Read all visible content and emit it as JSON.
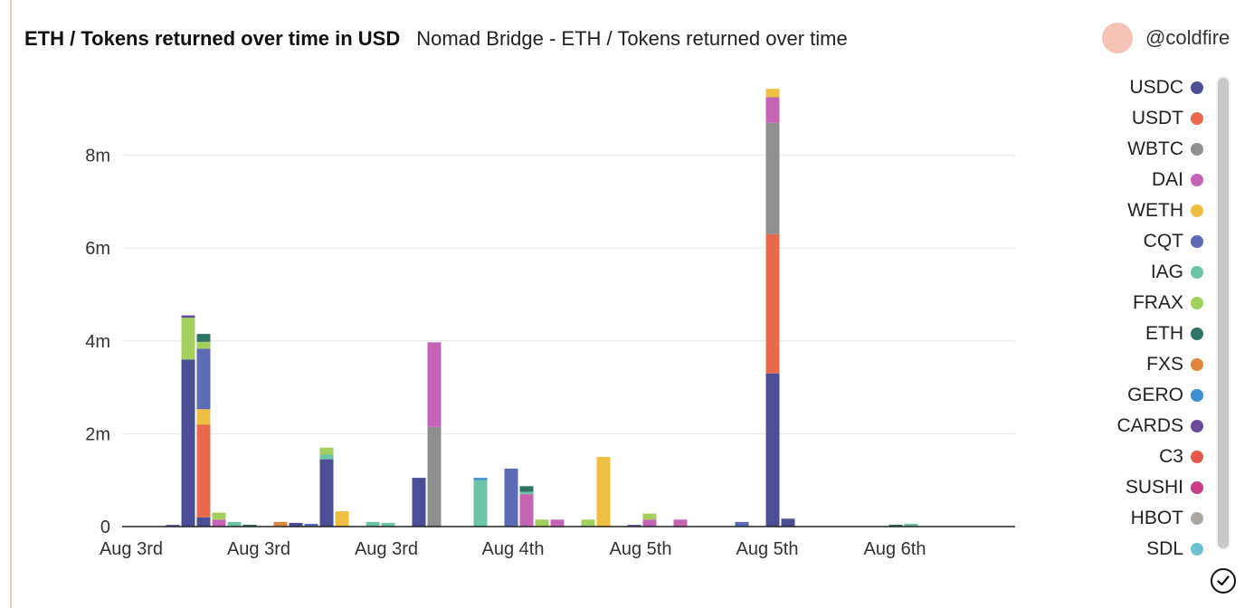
{
  "header": {
    "title": "ETH / Tokens returned over time in USD",
    "subtitle": "Nomad Bridge - ETH / Tokens returned over time"
  },
  "author": {
    "name": "@coldfire"
  },
  "chart_data": {
    "type": "bar",
    "stacked": true,
    "title": "ETH / Tokens returned over time in USD",
    "ylim": [
      0,
      9500000
    ],
    "y_ticks": [
      0,
      2000000,
      4000000,
      6000000,
      8000000
    ],
    "y_tick_labels": [
      "0",
      "2m",
      "4m",
      "6m",
      "8m"
    ],
    "x_tick_labels": [
      "Aug 3rd",
      "Aug 3rd",
      "Aug 3rd",
      "Aug 4th",
      "Aug 5th",
      "Aug 5th",
      "Aug 6th"
    ],
    "grid": true,
    "legend_position": "right",
    "colors": {
      "USDC": "#4b4f96",
      "USDT": "#e8694b",
      "WBTC": "#8f8f8f",
      "DAI": "#c563b5",
      "WETH": "#eebf42",
      "CQT": "#5b6bb5",
      "IAG": "#6bc4a6",
      "FRAX": "#a3cf5f",
      "ETH": "#2f7266",
      "FXS": "#e0863a",
      "GERO": "#3f8fce",
      "CARDS": "#6b4c9a",
      "C3": "#e35a4c",
      "SUSHI": "#c83d8a",
      "HBOT": "#a8a8a0",
      "SDL": "#6cc1ce"
    },
    "series_order": [
      "USDC",
      "USDT",
      "WBTC",
      "DAI",
      "WETH",
      "CQT",
      "IAG",
      "FRAX",
      "ETH",
      "FXS",
      "GERO",
      "CARDS",
      "C3",
      "SUSHI",
      "HBOT",
      "SDL"
    ],
    "bars": [
      {
        "x": 1,
        "stack": [
          {
            "s": "CQT",
            "v": 20000
          }
        ]
      },
      {
        "x": 2,
        "stack": [
          {
            "s": "USDC",
            "v": 3600000
          },
          {
            "s": "FRAX",
            "v": 900000
          },
          {
            "s": "CARDS",
            "v": 50000
          }
        ]
      },
      {
        "x": 3,
        "stack": [
          {
            "s": "USDC",
            "v": 200000
          },
          {
            "s": "USDT",
            "v": 2000000
          },
          {
            "s": "WETH",
            "v": 330000
          },
          {
            "s": "CQT",
            "v": 1300000
          },
          {
            "s": "FRAX",
            "v": 150000
          },
          {
            "s": "ETH",
            "v": 170000
          }
        ]
      },
      {
        "x": 4,
        "stack": [
          {
            "s": "DAI",
            "v": 150000
          },
          {
            "s": "FRAX",
            "v": 150000
          }
        ]
      },
      {
        "x": 5,
        "stack": [
          {
            "s": "IAG",
            "v": 100000
          }
        ]
      },
      {
        "x": 6,
        "stack": [
          {
            "s": "ETH",
            "v": 40000
          }
        ]
      },
      {
        "x": 8,
        "stack": [
          {
            "s": "FXS",
            "v": 100000
          }
        ]
      },
      {
        "x": 9,
        "stack": [
          {
            "s": "USDC",
            "v": 80000
          }
        ]
      },
      {
        "x": 10,
        "stack": [
          {
            "s": "CQT",
            "v": 60000
          }
        ]
      },
      {
        "x": 11,
        "stack": [
          {
            "s": "USDC",
            "v": 1450000
          },
          {
            "s": "IAG",
            "v": 100000
          },
          {
            "s": "FRAX",
            "v": 150000
          }
        ]
      },
      {
        "x": 12,
        "stack": [
          {
            "s": "WETH",
            "v": 330000
          }
        ]
      },
      {
        "x": 14,
        "stack": [
          {
            "s": "IAG",
            "v": 100000
          }
        ]
      },
      {
        "x": 15,
        "stack": [
          {
            "s": "IAG",
            "v": 80000
          }
        ]
      },
      {
        "x": 17,
        "stack": [
          {
            "s": "USDC",
            "v": 1050000
          }
        ]
      },
      {
        "x": 18,
        "stack": [
          {
            "s": "WBTC",
            "v": 2150000
          },
          {
            "s": "DAI",
            "v": 1820000
          }
        ]
      },
      {
        "x": 21,
        "stack": [
          {
            "s": "IAG",
            "v": 1000000
          },
          {
            "s": "GERO",
            "v": 50000
          }
        ]
      },
      {
        "x": 23,
        "stack": [
          {
            "s": "CQT",
            "v": 1250000
          }
        ]
      },
      {
        "x": 24,
        "stack": [
          {
            "s": "DAI",
            "v": 700000
          },
          {
            "s": "IAG",
            "v": 50000
          },
          {
            "s": "ETH",
            "v": 120000
          }
        ]
      },
      {
        "x": 25,
        "stack": [
          {
            "s": "FRAX",
            "v": 150000
          }
        ]
      },
      {
        "x": 26,
        "stack": [
          {
            "s": "DAI",
            "v": 150000
          }
        ]
      },
      {
        "x": 28,
        "stack": [
          {
            "s": "FRAX",
            "v": 150000
          }
        ]
      },
      {
        "x": 29,
        "stack": [
          {
            "s": "WETH",
            "v": 1500000
          }
        ]
      },
      {
        "x": 31,
        "stack": [
          {
            "s": "CQT",
            "v": 20000
          }
        ]
      },
      {
        "x": 32,
        "stack": [
          {
            "s": "DAI",
            "v": 150000
          },
          {
            "s": "FRAX",
            "v": 130000
          }
        ]
      },
      {
        "x": 34,
        "stack": [
          {
            "s": "DAI",
            "v": 150000
          }
        ]
      },
      {
        "x": 38,
        "stack": [
          {
            "s": "CQT",
            "v": 100000
          }
        ]
      },
      {
        "x": 40,
        "stack": [
          {
            "s": "USDC",
            "v": 3300000
          },
          {
            "s": "USDT",
            "v": 3000000
          },
          {
            "s": "WBTC",
            "v": 2400000
          },
          {
            "s": "DAI",
            "v": 550000
          },
          {
            "s": "WETH",
            "v": 180000
          }
        ]
      },
      {
        "x": 41,
        "stack": [
          {
            "s": "USDC",
            "v": 170000
          }
        ]
      },
      {
        "x": 48,
        "stack": [
          {
            "s": "ETH",
            "v": 40000
          }
        ]
      },
      {
        "x": 49,
        "stack": [
          {
            "s": "IAG",
            "v": 60000
          }
        ]
      }
    ]
  },
  "legend": {
    "items": [
      {
        "label": "USDC",
        "color": "#4b4f96"
      },
      {
        "label": "USDT",
        "color": "#e8694b"
      },
      {
        "label": "WBTC",
        "color": "#8f8f8f"
      },
      {
        "label": "DAI",
        "color": "#c563b5"
      },
      {
        "label": "WETH",
        "color": "#eebf42"
      },
      {
        "label": "CQT",
        "color": "#5b6bb5"
      },
      {
        "label": "IAG",
        "color": "#6bc4a6"
      },
      {
        "label": "FRAX",
        "color": "#a3cf5f"
      },
      {
        "label": "ETH",
        "color": "#2f7266"
      },
      {
        "label": "FXS",
        "color": "#e0863a"
      },
      {
        "label": "GERO",
        "color": "#3f8fce"
      },
      {
        "label": "CARDS",
        "color": "#6b4c9a"
      },
      {
        "label": "C3",
        "color": "#e35a4c"
      },
      {
        "label": "SUSHI",
        "color": "#c83d8a"
      },
      {
        "label": "HBOT",
        "color": "#a8a8a0"
      },
      {
        "label": "SDL",
        "color": "#6cc1ce"
      }
    ]
  },
  "icons": {
    "legend_toggle": "check-circle-icon"
  }
}
